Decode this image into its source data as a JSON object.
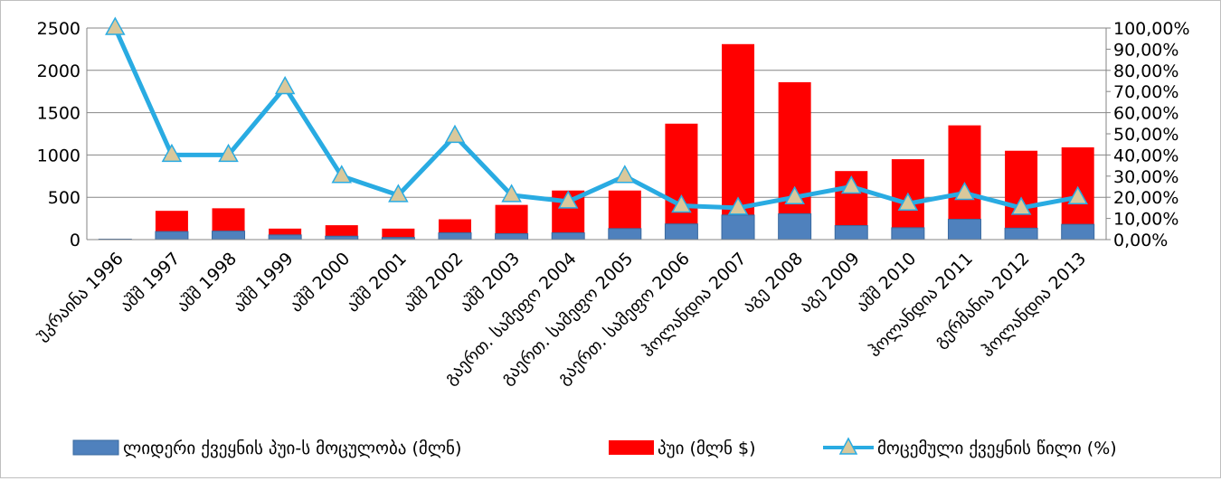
{
  "chart_data": {
    "type": "bar",
    "categories": [
      "უკრაინა 1996",
      "აშშ 1997",
      "აშშ 1998",
      "აშშ 1999",
      "აშშ 2000",
      "აშშ 2001",
      "აშშ 2002",
      "აშშ 2003",
      "გაერთ. სამეფო 2004",
      "გაერთ. სამეფო 2005",
      "გაერთ. სამეფო 2006",
      "ჰოლანდია 2007",
      "აგე 2008",
      "აგე 2009",
      "აშშ 2010",
      "ჰოლანდია 2011",
      "გერმანია 2012",
      "ჰოლანდია 2013"
    ],
    "series": [
      {
        "name": "ლიდერი ქვეყნის პუი-ს  მოცულობა (მლნ)",
        "type": "bar",
        "axis": "left",
        "color": "#4f81bd",
        "values": [
          5,
          95,
          100,
          55,
          40,
          25,
          80,
          70,
          80,
          130,
          185,
          290,
          305,
          165,
          140,
          240,
          135,
          180
        ]
      },
      {
        "name": "პუი  (მლნ $)",
        "type": "bar",
        "axis": "left",
        "color": "#ff0000",
        "values": [
          5,
          340,
          370,
          130,
          170,
          130,
          240,
          410,
          580,
          580,
          1370,
          2310,
          1860,
          810,
          950,
          1350,
          1050,
          1090
        ]
      },
      {
        "name": "მოცემული ქვეყნის წილი (%)",
        "type": "line",
        "axis": "right",
        "color": "#29abe2",
        "marker_color": "#d9c89b",
        "values": [
          100,
          40,
          40,
          72,
          30,
          21,
          49,
          21,
          18,
          30,
          16,
          15,
          20,
          25,
          17,
          22,
          15,
          20
        ]
      }
    ],
    "y_left": {
      "ylim": [
        0,
        2500
      ],
      "ticks": [
        "0",
        "500",
        "1000",
        "1500",
        "2000",
        "2500"
      ]
    },
    "y_right": {
      "ylim": [
        0,
        100
      ],
      "ticks": [
        "0,00%",
        "10,00%",
        "20,00%",
        "30,00%",
        "40,00%",
        "50,00%",
        "60,00%",
        "70,00%",
        "80,00%",
        "90,00%",
        "100,00%"
      ]
    },
    "grid": true,
    "legend_position": "bottom",
    "title": "",
    "xlabel": "",
    "ylabel": ""
  }
}
